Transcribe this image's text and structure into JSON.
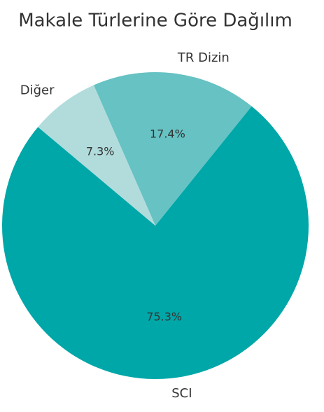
{
  "chart_data": {
    "type": "pie",
    "title": "Makale Türlerine Göre Dağılım",
    "categories": [
      "SCI",
      "TR Dizin",
      "Diğer"
    ],
    "values": [
      75.3,
      17.4,
      7.3
    ],
    "value_labels": [
      "75.3%",
      "17.4%",
      "7.3%"
    ],
    "colors": [
      "#00a7a8",
      "#66c2c3",
      "#b2dcdc"
    ]
  }
}
